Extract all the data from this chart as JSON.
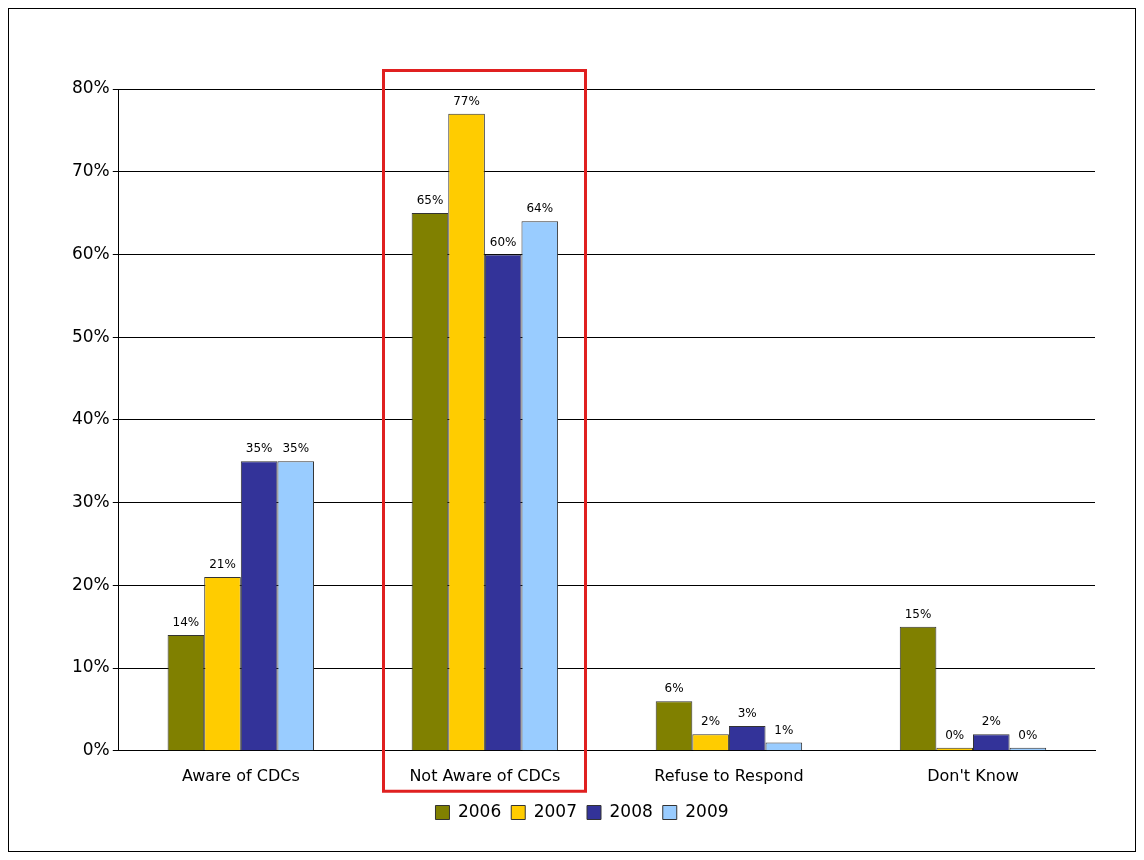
{
  "chart_data": {
    "type": "bar",
    "categories": [
      "Aware of CDCs",
      "Not Aware of CDCs",
      "Refuse to Respond",
      "Don't Know"
    ],
    "series": [
      {
        "name": "2006",
        "color": "#808000",
        "values": [
          14,
          65,
          6,
          15
        ],
        "value_labels": [
          "14%",
          "65%",
          "6%",
          "15%"
        ]
      },
      {
        "name": "2007",
        "color": "#ffcc00",
        "values": [
          21,
          77,
          2,
          0
        ],
        "value_labels": [
          "21%",
          "77%",
          "2%",
          "0%"
        ]
      },
      {
        "name": "2008",
        "color": "#333399",
        "values": [
          35,
          60,
          3,
          2
        ],
        "value_labels": [
          "35%",
          "60%",
          "3%",
          "2%"
        ]
      },
      {
        "name": "2009",
        "color": "#99ccff",
        "values": [
          35,
          64,
          1,
          0
        ],
        "value_labels": [
          "35%",
          "64%",
          "1%",
          "0%"
        ]
      }
    ],
    "ylim": [
      0,
      80
    ],
    "yticks": [
      {
        "value": 0,
        "label": "0%"
      },
      {
        "value": 10,
        "label": "10%"
      },
      {
        "value": 20,
        "label": "20%"
      },
      {
        "value": 30,
        "label": "30%"
      },
      {
        "value": 40,
        "label": "40%"
      },
      {
        "value": 50,
        "label": "50%"
      },
      {
        "value": 60,
        "label": "60%"
      },
      {
        "value": 70,
        "label": "70%"
      },
      {
        "value": 80,
        "label": "80%"
      }
    ],
    "grid": "y",
    "legend": "bottom"
  }
}
